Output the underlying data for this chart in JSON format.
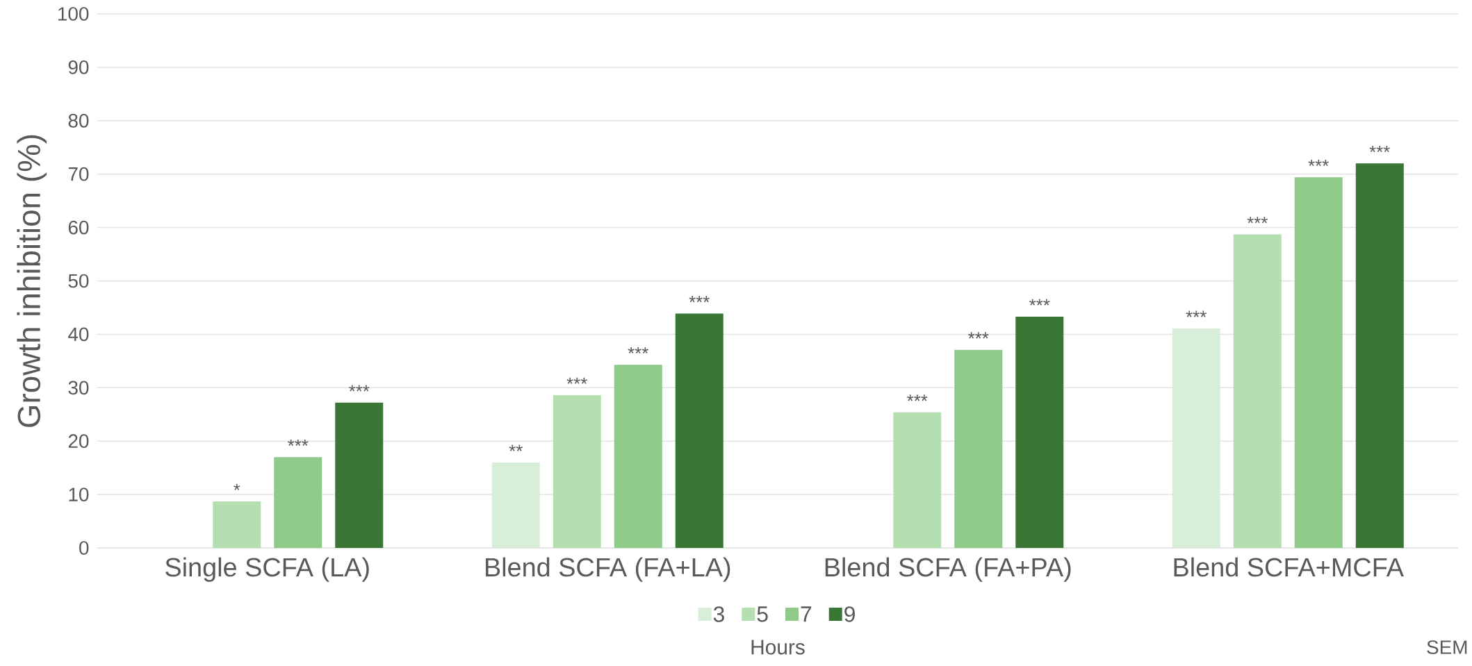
{
  "chart_data": {
    "type": "bar",
    "ylabel": "Growth inhibition (%)",
    "legend_title": "Hours",
    "categories": [
      "Single SCFA (LA)",
      "Blend SCFA (FA+LA)",
      "Blend SCFA (FA+PA)",
      "Blend SCFA+MCFA"
    ],
    "series": [
      {
        "name": "3",
        "color": "#d9eed9",
        "values": [
          null,
          16.0,
          null,
          41.1
        ],
        "value_labels": [
          null,
          "**",
          null,
          "***"
        ]
      },
      {
        "name": "5",
        "color": "#b5dfb0",
        "values": [
          8.7,
          28.6,
          25.4,
          58.7
        ],
        "value_labels": [
          "*",
          "***",
          "***",
          "***"
        ]
      },
      {
        "name": "7",
        "color": "#8fca8a",
        "values": [
          17.0,
          34.3,
          37.1,
          69.4
        ],
        "value_labels": [
          "***",
          "***",
          "***",
          "***"
        ]
      },
      {
        "name": "9",
        "color": "#3a7636",
        "values": [
          27.2,
          43.9,
          43.3,
          72.0
        ],
        "value_labels": [
          "***",
          "***",
          "***",
          "***"
        ]
      }
    ],
    "ylim": [
      0,
      100
    ],
    "yticks": [
      0,
      10,
      20,
      30,
      40,
      50,
      60,
      70,
      80,
      90,
      100
    ],
    "grid": "y",
    "legend": "bottom",
    "annotations": [
      "SEM"
    ]
  }
}
